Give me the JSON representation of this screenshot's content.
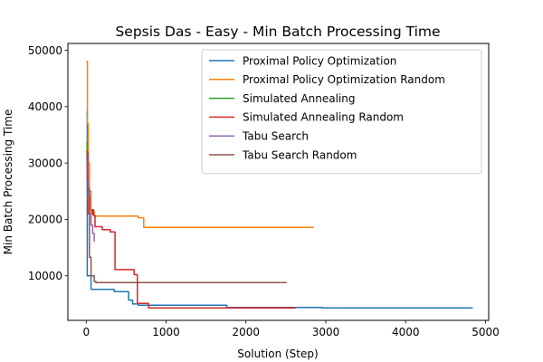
{
  "chart_data": {
    "type": "line",
    "title": "Sepsis Das - Easy - Min Batch Processing Time",
    "xlabel": "Solution (Step)",
    "ylabel": "Min Batch Processing Time",
    "xlim": [
      -230,
      5040
    ],
    "ylim": [
      2100,
      51200
    ],
    "xticks": [
      0,
      1000,
      2000,
      3000,
      4000,
      5000
    ],
    "yticks": [
      10000,
      20000,
      30000,
      40000,
      50000
    ],
    "grid": false,
    "legend_position": "top-right",
    "series": [
      {
        "name": "Proximal Policy Optimization",
        "color": "#1f77b4",
        "x": [
          0,
          12,
          12,
          60,
          60,
          350,
          350,
          530,
          530,
          580,
          580,
          650,
          650,
          1760,
          1760,
          2960,
          2960,
          4840
        ],
        "y": [
          39000,
          39000,
          10000,
          10000,
          7600,
          7600,
          7200,
          7200,
          5700,
          5700,
          5000,
          5000,
          4800,
          4800,
          4400,
          4400,
          4300,
          4300
        ]
      },
      {
        "name": "Proximal Policy Optimization Random",
        "color": "#ff7f0e",
        "x": [
          0,
          15,
          15,
          25,
          25,
          40,
          40,
          60,
          60,
          100,
          100,
          650,
          650,
          720,
          720,
          2850
        ],
        "y": [
          48000,
          48000,
          37000,
          37000,
          30000,
          30000,
          25000,
          25000,
          21500,
          21500,
          20600,
          20600,
          20300,
          20300,
          18600,
          18600
        ]
      },
      {
        "name": "Simulated Annealing",
        "color": "#2ca02c",
        "x": [
          0,
          10,
          10,
          20
        ],
        "y": [
          33500,
          33500,
          30000,
          30000
        ]
      },
      {
        "name": "Simulated Annealing Random",
        "color": "#d62728",
        "x": [
          0,
          20,
          20,
          75,
          75,
          90,
          90,
          110,
          110,
          200,
          200,
          300,
          300,
          360,
          360,
          390,
          390,
          600,
          600,
          640,
          640,
          780,
          780,
          2620
        ],
        "y": [
          32000,
          32000,
          21000,
          21000,
          21700,
          21700,
          20700,
          20700,
          18700,
          18700,
          18200,
          18200,
          17800,
          17800,
          11100,
          11100,
          11100,
          11100,
          10200,
          10200,
          5100,
          5100,
          4300,
          4300
        ]
      },
      {
        "name": "Tabu Search",
        "color": "#9467bd",
        "x": [
          0,
          10,
          10,
          25,
          25,
          45,
          45,
          60,
          60,
          80,
          80,
          100,
          100,
          110
        ],
        "y": [
          31000,
          31000,
          27000,
          27000,
          24000,
          24000,
          21000,
          21000,
          19000,
          19000,
          17500,
          17500,
          16200,
          16200
        ]
      },
      {
        "name": "Tabu Search Random",
        "color": "#8c564b",
        "x": [
          0,
          15,
          15,
          40,
          40,
          60,
          60,
          100,
          100,
          120,
          120,
          2510
        ],
        "y": [
          31500,
          31500,
          25500,
          25500,
          13300,
          13300,
          10000,
          10000,
          9000,
          9000,
          8800,
          8800
        ]
      }
    ]
  }
}
